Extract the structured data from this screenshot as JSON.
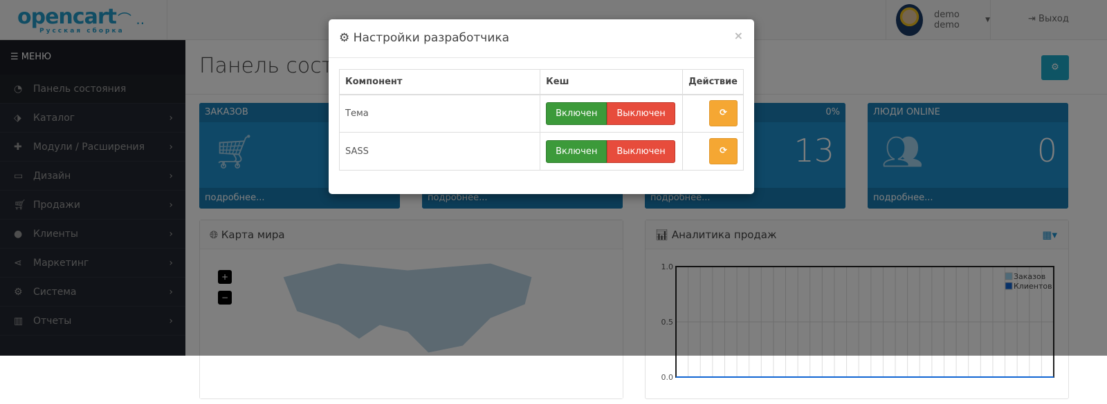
{
  "header": {
    "logo_text": "opencart",
    "logo_sub": "Русская сборка",
    "user_name": "demo demo",
    "logout": "Выход"
  },
  "sidebar": {
    "menu_label": "МЕНЮ",
    "items": [
      {
        "label": "Панель состояния",
        "icon": "dashboard-icon"
      },
      {
        "label": "Каталог",
        "icon": "tags-icon"
      },
      {
        "label": "Модули / Расширения",
        "icon": "puzzle-icon"
      },
      {
        "label": "Дизайн",
        "icon": "desktop-icon"
      },
      {
        "label": "Продажи",
        "icon": "cart-icon"
      },
      {
        "label": "Клиенты",
        "icon": "user-icon"
      },
      {
        "label": "Маркетинг",
        "icon": "share-icon"
      },
      {
        "label": "Система",
        "icon": "gear-icon"
      },
      {
        "label": "Отчеты",
        "icon": "bar-chart-icon"
      }
    ]
  },
  "main": {
    "title": "Панель состояния",
    "tiles": [
      {
        "title": "ЗАКАЗОВ",
        "badge": "",
        "value": "",
        "footer": "подробнее..."
      },
      {
        "title": "",
        "badge": "",
        "value": "",
        "footer": "подробнее..."
      },
      {
        "title": "",
        "badge": "0%",
        "value": "13",
        "footer": "подробнее..."
      },
      {
        "title": "ЛЮДИ ONLINE",
        "badge": "",
        "value": "0",
        "footer": "подробнее..."
      }
    ],
    "map_title": "Карта мира",
    "zoom_in": "+",
    "zoom_out": "−",
    "analytics_title": "Аналитика продаж"
  },
  "chart_data": {
    "type": "bar",
    "ylim": [
      0,
      1
    ],
    "yticks": [
      "0.0",
      "0.5",
      "1.0"
    ],
    "grid": true,
    "legend_position": "top-right",
    "series": [
      {
        "name": "Заказов",
        "color": "#9fd5f1",
        "values": []
      },
      {
        "name": "Клиентов",
        "color": "#1065d2",
        "values": []
      }
    ]
  },
  "modal": {
    "title": "Настройки разработчика",
    "close": "×",
    "columns": [
      "Компонент",
      "Кеш",
      "Действие"
    ],
    "rows": [
      {
        "component": "Тема",
        "on": "Включен",
        "off": "Выключен"
      },
      {
        "component": "SASS",
        "on": "Включен",
        "off": "Выключен"
      }
    ]
  }
}
